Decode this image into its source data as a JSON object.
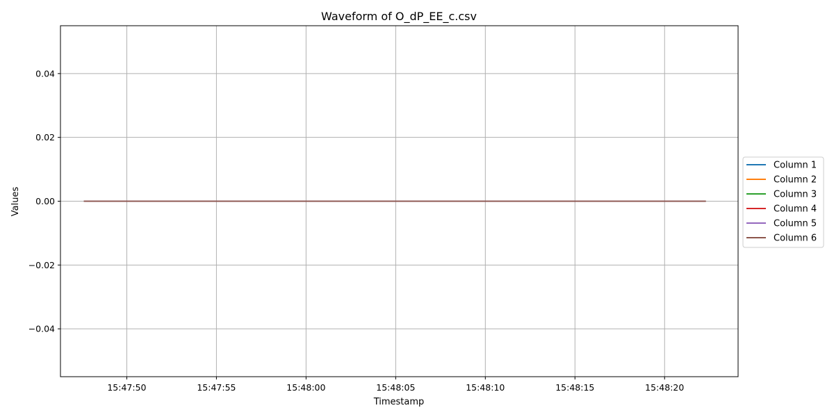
{
  "chart_data": {
    "type": "line",
    "title": "Waveform of O_dP_EE_c.csv",
    "xlabel": "Timestamp",
    "ylabel": "Values",
    "x_ticks": [
      "15:47:50",
      "15:47:55",
      "15:48:00",
      "15:48:05",
      "15:48:10",
      "15:48:15",
      "15:48:20"
    ],
    "y_ticks": [
      "−0.04",
      "−0.02",
      "0.00",
      "0.02",
      "0.04"
    ],
    "y_tick_values": [
      -0.04,
      -0.02,
      0.0,
      0.02,
      0.04
    ],
    "ylim": [
      -0.055,
      0.055
    ],
    "xlim": [
      "15:47:46.3",
      "15:48:24.1"
    ],
    "x": [
      "15:47:47.6",
      "15:48:22.3"
    ],
    "grid": true,
    "legend_position": "center-right outside",
    "series": [
      {
        "name": "Column 1",
        "color": "#1f77b4",
        "values": [
          0,
          0
        ]
      },
      {
        "name": "Column 2",
        "color": "#ff7f0e",
        "values": [
          0,
          0
        ]
      },
      {
        "name": "Column 3",
        "color": "#2ca02c",
        "values": [
          0,
          0
        ]
      },
      {
        "name": "Column 4",
        "color": "#d62728",
        "values": [
          0,
          0
        ]
      },
      {
        "name": "Column 5",
        "color": "#9467bd",
        "values": [
          0,
          0
        ]
      },
      {
        "name": "Column 6",
        "color": "#8c564b",
        "values": [
          0,
          0
        ]
      }
    ]
  }
}
